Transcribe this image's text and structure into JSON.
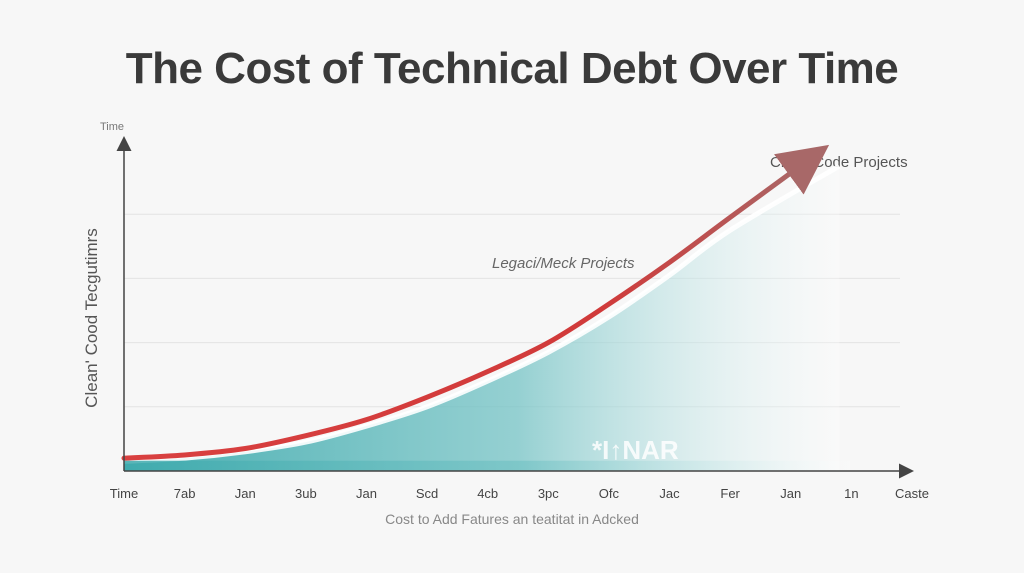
{
  "chart_data": {
    "type": "area",
    "title": "The Cost of Technical Debt Over Time",
    "ylabel": "Clean' Cood Tecgutimrs",
    "ylabel_top": "Time",
    "xlabel": "Cost to Add Fatures an teatitat in Adcked",
    "categories": [
      "Time",
      "7ab",
      "Jan",
      "3ub",
      "Jan",
      "Scd",
      "4cb",
      "3pc",
      "Ofc",
      "Jac",
      "Fer",
      "Jan",
      "1n",
      "Caste"
    ],
    "ylim": [
      0,
      100
    ],
    "grid": true,
    "series": [
      {
        "name": "Clean Code Projects",
        "color": "#c44545",
        "x": [
          0,
          1,
          2,
          3,
          4,
          5,
          6,
          7,
          8,
          9,
          10,
          11.3
        ],
        "values": [
          4,
          5,
          7,
          11,
          16,
          23,
          31,
          40,
          52,
          65,
          79,
          97
        ]
      },
      {
        "name": "Legaci/Meck Projects",
        "color": "#4fb3b5",
        "x": [
          0,
          1,
          2,
          3,
          4,
          5,
          6,
          7,
          8,
          9,
          10,
          11.8
        ],
        "values": [
          3,
          4,
          6,
          9,
          14,
          20,
          28,
          37,
          48,
          61,
          75,
          95
        ]
      }
    ],
    "watermark": "*I↑NAR"
  }
}
